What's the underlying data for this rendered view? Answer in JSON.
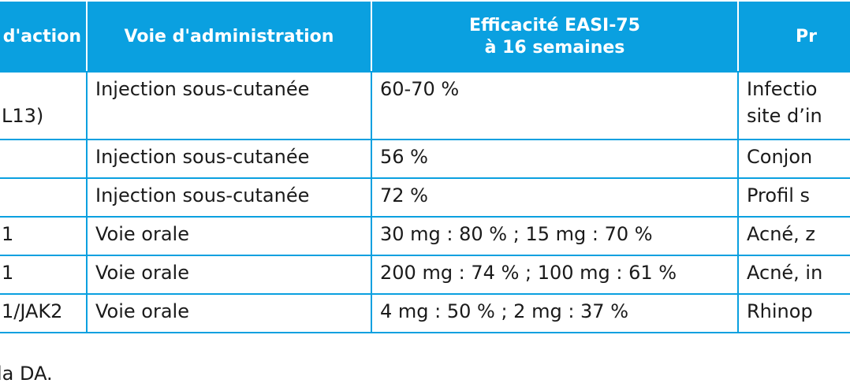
{
  "table": {
    "headers": {
      "mechanism": "d'action",
      "route": "Voie d'administration",
      "efficacy_line1": "Efficacité EASI-75",
      "efficacy_line2": "à 16 semaines",
      "profile": "Pr"
    },
    "rows": [
      {
        "mechanism_line1": "",
        "mechanism_line2": "L13)",
        "route": "Injection sous-cutanée",
        "efficacy": "60-70 %",
        "profile_line1": "Infectio",
        "profile_line2": "site d’in"
      },
      {
        "mechanism_line1": "",
        "mechanism_line2": "",
        "route": "Injection sous-cutanée",
        "efficacy": "56 %",
        "profile_line1": "Conjon",
        "profile_line2": ""
      },
      {
        "mechanism_line1": "",
        "mechanism_line2": "",
        "route": "Injection sous-cutanée",
        "efficacy": "72 %",
        "profile_line1": "Profil s",
        "profile_line2": ""
      },
      {
        "mechanism_line1": "1",
        "mechanism_line2": "",
        "route": "Voie orale",
        "efficacy": "30 mg : 80 % ; 15 mg : 70 %",
        "profile_line1": "Acné, z",
        "profile_line2": ""
      },
      {
        "mechanism_line1": "1",
        "mechanism_line2": "",
        "route": "Voie orale",
        "efficacy": "200 mg : 74 % ; 100 mg : 61 %",
        "profile_line1": "Acné, in",
        "profile_line2": ""
      },
      {
        "mechanism_line1": "1/JAK2",
        "mechanism_line2": "",
        "route": "Voie orale",
        "efficacy": "4 mg : 50 % ; 2 mg : 37 %",
        "profile_line1": "Rhinop",
        "profile_line2": ""
      }
    ]
  },
  "footnote": "la DA.",
  "colors": {
    "header_bg": "#0aa0e0",
    "border": "#0aa0e0",
    "header_text": "#ffffff"
  }
}
